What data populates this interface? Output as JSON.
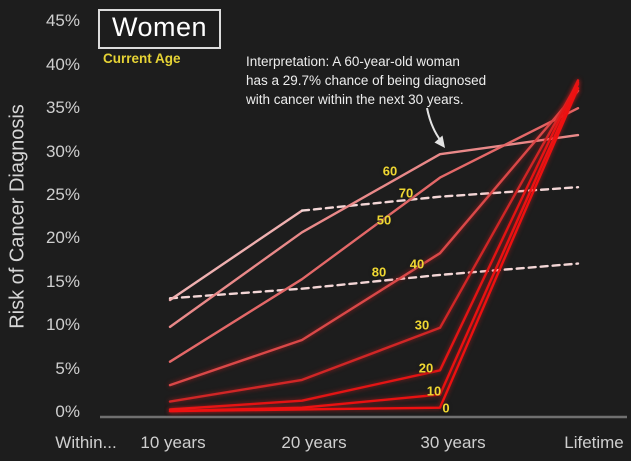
{
  "header": {
    "title": "Women",
    "legend_label": "Current Age"
  },
  "y_axis": {
    "title": "Risk of Cancer Diagnosis",
    "ticks": [
      "0%",
      "5%",
      "10%",
      "15%",
      "20%",
      "25%",
      "30%",
      "35%",
      "40%",
      "45%"
    ]
  },
  "x_axis": {
    "labels": [
      "Within...",
      "10 years",
      "20 years",
      "30 years",
      "Lifetime"
    ]
  },
  "annotation": {
    "line1": "Interpretation: A 60-year-old woman",
    "line2": "has a 29.7% chance of being diagnosed",
    "line3": "with cancer within the next 30 years.",
    "highlight_value": "29.7%"
  },
  "colors": {
    "background": "#1d1d1d",
    "axis_line": "#707070",
    "tick_text": "#cfcfcf",
    "accent_yellow": "#f0d832",
    "annotation_text": "#ededed",
    "title_text": "#ffffff"
  },
  "chart_data": {
    "type": "line",
    "title": "Women",
    "subtitle": "Current Age",
    "x_categories": [
      "10 years",
      "20 years",
      "30 years",
      "Lifetime"
    ],
    "xlabel": "Within...",
    "ylabel": "Risk of Cancer Diagnosis",
    "ylim": [
      0,
      45
    ],
    "grid": false,
    "legend_position": "labels-on-lines",
    "series": [
      {
        "age": "80",
        "values": [
          13.1,
          14.2,
          15.8,
          17.1
        ],
        "color": "#f3d6d6",
        "style": "dashed",
        "note": "dashed entire length"
      },
      {
        "age": "70",
        "values": [
          12.9,
          23.2,
          24.8,
          25.9
        ],
        "color": "#efb0b0",
        "dash_color": "#f3d6d6",
        "style": "dash-after-20-years"
      },
      {
        "age": "60",
        "values": [
          9.8,
          20.7,
          29.7,
          31.9
        ],
        "color": "#e98989",
        "style": "solid"
      },
      {
        "age": "50",
        "values": [
          5.8,
          15.3,
          27.0,
          35.0
        ],
        "color": "#e36868",
        "style": "solid"
      },
      {
        "age": "40",
        "values": [
          3.1,
          8.3,
          18.3,
          37.0
        ],
        "color": "#d94848",
        "style": "solid"
      },
      {
        "age": "30",
        "values": [
          1.2,
          3.7,
          9.7,
          38.0
        ],
        "color": "#d02626",
        "style": "solid"
      },
      {
        "age": "20",
        "values": [
          0.3,
          1.3,
          4.8,
          38.2
        ],
        "color": "#e31414",
        "style": "solid"
      },
      {
        "age": "10",
        "values": [
          0.1,
          0.5,
          2.0,
          37.8
        ],
        "color": "#e91111",
        "style": "solid"
      },
      {
        "age": "0",
        "values": [
          0.1,
          0.3,
          0.5,
          37.3
        ],
        "color": "#ee1010",
        "style": "solid"
      }
    ]
  }
}
